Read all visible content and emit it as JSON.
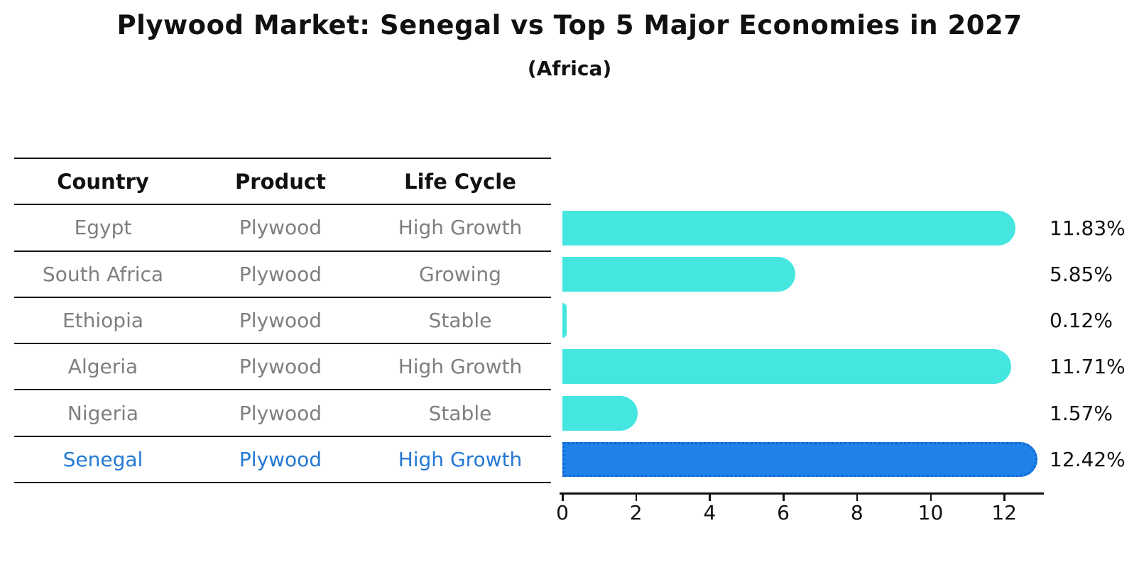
{
  "title": "Plywood Market: Senegal vs Top 5 Major Economies in 2027",
  "subtitle": "(Africa)",
  "table": {
    "headers": [
      "Country",
      "Product",
      "Life Cycle"
    ],
    "rows": [
      {
        "country": "Egypt",
        "product": "Plywood",
        "life_cycle": "High Growth",
        "highlight": false
      },
      {
        "country": "South Africa",
        "product": "Plywood",
        "life_cycle": "Growing",
        "highlight": false
      },
      {
        "country": "Ethiopia",
        "product": "Plywood",
        "life_cycle": "Stable",
        "highlight": false
      },
      {
        "country": "Algeria",
        "product": "Plywood",
        "life_cycle": "High Growth",
        "highlight": false
      },
      {
        "country": "Nigeria",
        "product": "Plywood",
        "life_cycle": "Stable",
        "highlight": false
      },
      {
        "country": "Senegal",
        "product": "Plywood",
        "life_cycle": "High Growth",
        "highlight": true
      }
    ]
  },
  "chart_data": {
    "type": "bar",
    "orientation": "horizontal",
    "title": "Plywood Market: Senegal vs Top 5 Major Economies in 2027",
    "subtitle": "(Africa)",
    "categories": [
      "Egypt",
      "South Africa",
      "Ethiopia",
      "Algeria",
      "Nigeria",
      "Senegal"
    ],
    "values": [
      11.83,
      5.85,
      0.12,
      11.71,
      1.57,
      12.42
    ],
    "value_labels": [
      "11.83%",
      "5.85%",
      "0.12%",
      "11.71%",
      "1.57%",
      "12.42%"
    ],
    "x_ticks": [
      "0",
      "2",
      "4",
      "6",
      "8",
      "10",
      "12"
    ],
    "xlim": [
      0,
      13
    ],
    "grid": false,
    "legend": false,
    "highlight_index": 5
  },
  "colors": {
    "bar_default": "#45e6e0",
    "bar_highlight": "#1e82e8",
    "bar_highlight_border": "#1365d2",
    "highlight_text": "#2479d4",
    "table_text": "#7f7f7f",
    "axis": "#111111"
  }
}
